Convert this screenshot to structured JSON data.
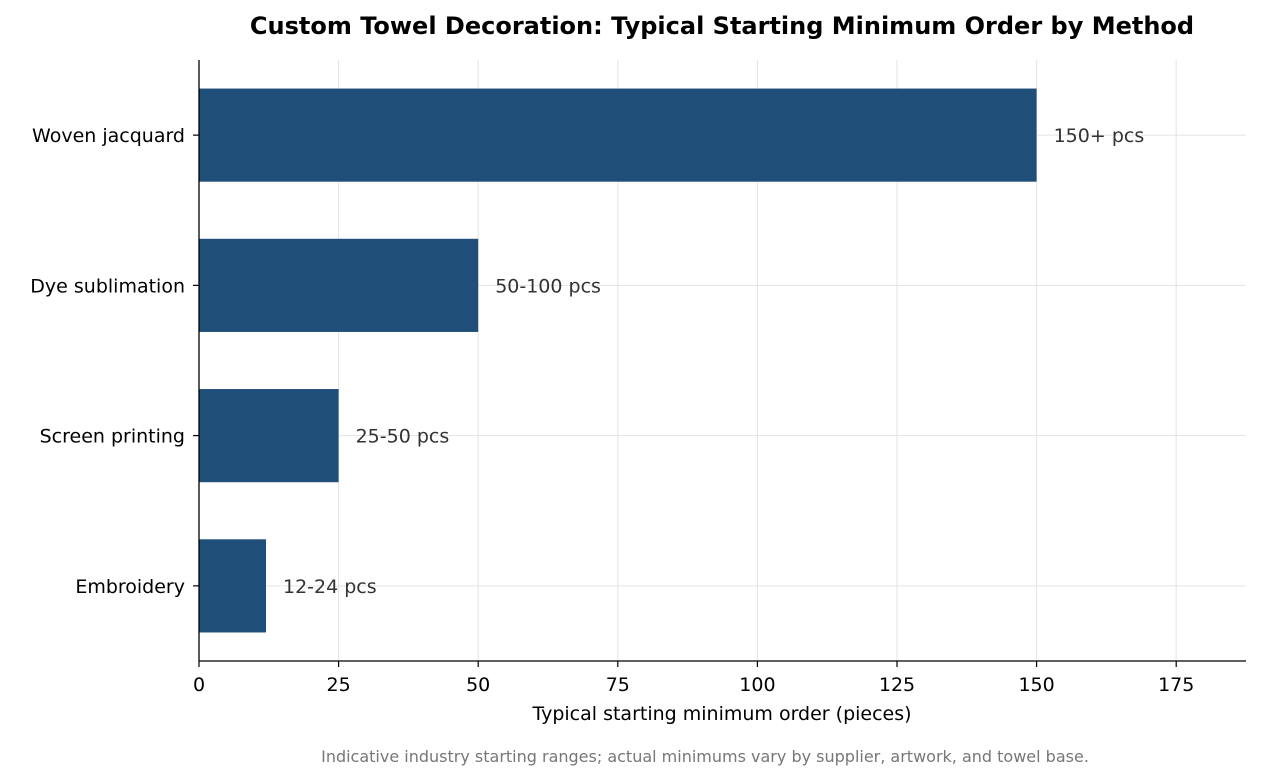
{
  "chart_data": {
    "type": "bar",
    "orientation": "horizontal",
    "title": "Custom Towel Decoration: Typical Starting Minimum Order by Method",
    "xlabel": "Typical starting minimum order (pieces)",
    "ylabel": "",
    "categories": [
      "Embroidery",
      "Screen printing",
      "Dye sublimation",
      "Woven jacquard"
    ],
    "values": [
      12,
      25,
      50,
      150
    ],
    "data_labels": [
      "12-24 pcs",
      "25-50 pcs",
      "50-100 pcs",
      "150+ pcs"
    ],
    "xlim": [
      0,
      187.5
    ],
    "xticks": [
      0,
      25,
      50,
      75,
      100,
      125,
      150,
      175
    ],
    "xtick_labels": [
      "0",
      "25",
      "50",
      "75",
      "100",
      "125",
      "150",
      "175"
    ],
    "grid": true,
    "bar_color": "#1f4e79",
    "footnote": "Indicative industry starting ranges; actual minimums vary by supplier, artwork, and towel base."
  }
}
